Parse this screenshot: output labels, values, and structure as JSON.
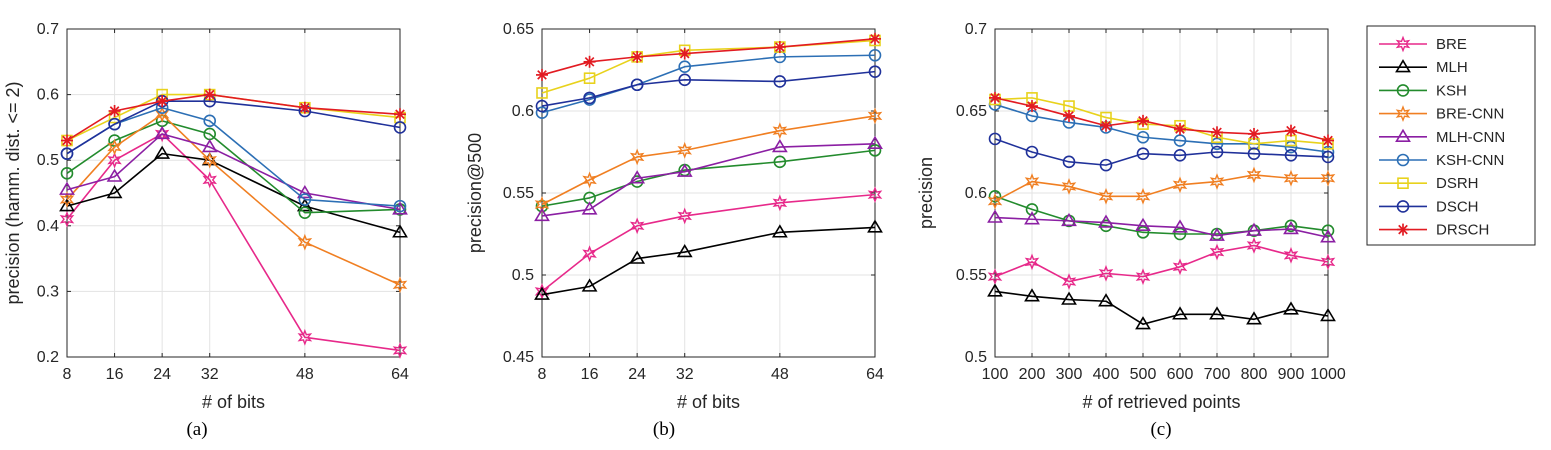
{
  "series_styles": [
    {
      "name": "BRE",
      "color": "#e7298a",
      "marker": "hexstar"
    },
    {
      "name": "MLH",
      "color": "#000000",
      "marker": "triangle"
    },
    {
      "name": "KSH",
      "color": "#238b2d",
      "marker": "circle"
    },
    {
      "name": "BRE-CNN",
      "color": "#f07f22",
      "marker": "hexstar"
    },
    {
      "name": "MLH-CNN",
      "color": "#8b1fa3",
      "marker": "triangle"
    },
    {
      "name": "KSH-CNN",
      "color": "#2c6fb5",
      "marker": "circle"
    },
    {
      "name": "DSRH",
      "color": "#e8d21c",
      "marker": "square"
    },
    {
      "name": "DSCH",
      "color": "#20319a",
      "marker": "circle"
    },
    {
      "name": "DRSCH",
      "color": "#e21b22",
      "marker": "asterisk"
    }
  ],
  "chart_data": [
    {
      "type": "line",
      "caption": "(a)",
      "xlabel": "# of bits",
      "ylabel": "precision (hamm. dist. <= 2)",
      "x": [
        8,
        16,
        24,
        32,
        48,
        64
      ],
      "xlim": [
        8,
        64
      ],
      "ylim": [
        0.2,
        0.7
      ],
      "xticks": [
        8,
        16,
        24,
        32,
        48,
        64
      ],
      "xtick_labels": [
        "8",
        "16",
        "24",
        "32",
        "48",
        "64"
      ],
      "yticks": [
        0.2,
        0.3,
        0.4,
        0.5,
        0.6,
        0.7
      ],
      "ytick_labels": [
        "0.2",
        "0.3",
        "0.4",
        "0.5",
        "0.6",
        "0.7"
      ],
      "series": [
        {
          "name": "BRE",
          "values": [
            0.41,
            0.5,
            0.54,
            0.47,
            0.23,
            0.21
          ]
        },
        {
          "name": "MLH",
          "values": [
            0.43,
            0.45,
            0.51,
            0.5,
            0.43,
            0.39
          ]
        },
        {
          "name": "KSH",
          "values": [
            0.48,
            0.53,
            0.56,
            0.54,
            0.42,
            0.425
          ]
        },
        {
          "name": "BRE-CNN",
          "values": [
            0.44,
            0.52,
            0.57,
            0.5,
            0.375,
            0.31
          ]
        },
        {
          "name": "MLH-CNN",
          "values": [
            0.455,
            0.475,
            0.54,
            0.52,
            0.45,
            0.425
          ]
        },
        {
          "name": "KSH-CNN",
          "values": [
            0.51,
            0.555,
            0.58,
            0.56,
            0.44,
            0.43
          ]
        },
        {
          "name": "DSRH",
          "values": [
            0.53,
            0.565,
            0.6,
            0.6,
            0.58,
            0.565
          ]
        },
        {
          "name": "DSCH",
          "values": [
            0.51,
            0.555,
            0.59,
            0.59,
            0.575,
            0.55
          ]
        },
        {
          "name": "DRSCH",
          "values": [
            0.53,
            0.575,
            0.59,
            0.6,
            0.58,
            0.57
          ]
        }
      ]
    },
    {
      "type": "line",
      "caption": "(b)",
      "xlabel": "# of bits",
      "ylabel": "precision@500",
      "x": [
        8,
        16,
        24,
        32,
        48,
        64
      ],
      "xlim": [
        8,
        64
      ],
      "ylim": [
        0.45,
        0.65
      ],
      "xticks": [
        8,
        16,
        24,
        32,
        48,
        64
      ],
      "xtick_labels": [
        "8",
        "16",
        "24",
        "32",
        "48",
        "64"
      ],
      "yticks": [
        0.45,
        0.5,
        0.55,
        0.6,
        0.65
      ],
      "ytick_labels": [
        "0.45",
        "0.5",
        "0.55",
        "0.6",
        "0.65"
      ],
      "series": [
        {
          "name": "BRE",
          "values": [
            0.49,
            0.513,
            0.53,
            0.536,
            0.544,
            0.549
          ]
        },
        {
          "name": "MLH",
          "values": [
            0.488,
            0.493,
            0.51,
            0.514,
            0.526,
            0.529
          ]
        },
        {
          "name": "KSH",
          "values": [
            0.542,
            0.547,
            0.557,
            0.564,
            0.569,
            0.576
          ]
        },
        {
          "name": "BRE-CNN",
          "values": [
            0.543,
            0.558,
            0.572,
            0.576,
            0.588,
            0.597
          ]
        },
        {
          "name": "MLH-CNN",
          "values": [
            0.536,
            0.54,
            0.559,
            0.563,
            0.578,
            0.58
          ]
        },
        {
          "name": "KSH-CNN",
          "values": [
            0.599,
            0.607,
            0.616,
            0.627,
            0.633,
            0.634
          ]
        },
        {
          "name": "DSRH",
          "values": [
            0.611,
            0.62,
            0.633,
            0.637,
            0.639,
            0.643
          ]
        },
        {
          "name": "DSCH",
          "values": [
            0.603,
            0.608,
            0.616,
            0.619,
            0.618,
            0.624
          ]
        },
        {
          "name": "DRSCH",
          "values": [
            0.622,
            0.63,
            0.633,
            0.635,
            0.639,
            0.644
          ]
        }
      ]
    },
    {
      "type": "line",
      "caption": "(c)",
      "xlabel": "# of retrieved points",
      "ylabel": "precision",
      "x": [
        100,
        200,
        300,
        400,
        500,
        600,
        700,
        800,
        900,
        1000
      ],
      "xlim": [
        100,
        1000
      ],
      "ylim": [
        0.5,
        0.7
      ],
      "xticks": [
        100,
        200,
        300,
        400,
        500,
        600,
        700,
        800,
        900,
        1000
      ],
      "xtick_labels": [
        "100",
        "200",
        "300",
        "400",
        "500",
        "600",
        "700",
        "800",
        "900",
        "1000"
      ],
      "yticks": [
        0.5,
        0.55,
        0.6,
        0.65,
        0.7
      ],
      "ytick_labels": [
        "0.5",
        "0.55",
        "0.6",
        "0.65",
        "0.7"
      ],
      "series": [
        {
          "name": "BRE",
          "values": [
            0.549,
            0.558,
            0.546,
            0.551,
            0.549,
            0.555,
            0.564,
            0.568,
            0.562,
            0.558
          ]
        },
        {
          "name": "MLH",
          "values": [
            0.54,
            0.537,
            0.535,
            0.534,
            0.52,
            0.526,
            0.526,
            0.523,
            0.529,
            0.525
          ]
        },
        {
          "name": "KSH",
          "values": [
            0.598,
            0.59,
            0.583,
            0.58,
            0.576,
            0.575,
            0.575,
            0.577,
            0.58,
            0.577
          ]
        },
        {
          "name": "BRE-CNN",
          "values": [
            0.595,
            0.607,
            0.604,
            0.598,
            0.598,
            0.605,
            0.607,
            0.611,
            0.609,
            0.609
          ]
        },
        {
          "name": "MLH-CNN",
          "values": [
            0.585,
            0.584,
            0.583,
            0.582,
            0.58,
            0.579,
            0.574,
            0.577,
            0.578,
            0.573
          ]
        },
        {
          "name": "KSH-CNN",
          "values": [
            0.654,
            0.647,
            0.643,
            0.64,
            0.634,
            0.632,
            0.63,
            0.63,
            0.628,
            0.625
          ]
        },
        {
          "name": "DSRH",
          "values": [
            0.657,
            0.658,
            0.653,
            0.646,
            0.642,
            0.641,
            0.634,
            0.63,
            0.632,
            0.63
          ]
        },
        {
          "name": "DSCH",
          "values": [
            0.633,
            0.625,
            0.619,
            0.617,
            0.624,
            0.623,
            0.625,
            0.624,
            0.623,
            0.622
          ]
        },
        {
          "name": "DRSCH",
          "values": [
            0.658,
            0.653,
            0.647,
            0.641,
            0.644,
            0.639,
            0.637,
            0.636,
            0.638,
            0.632
          ]
        }
      ]
    }
  ]
}
